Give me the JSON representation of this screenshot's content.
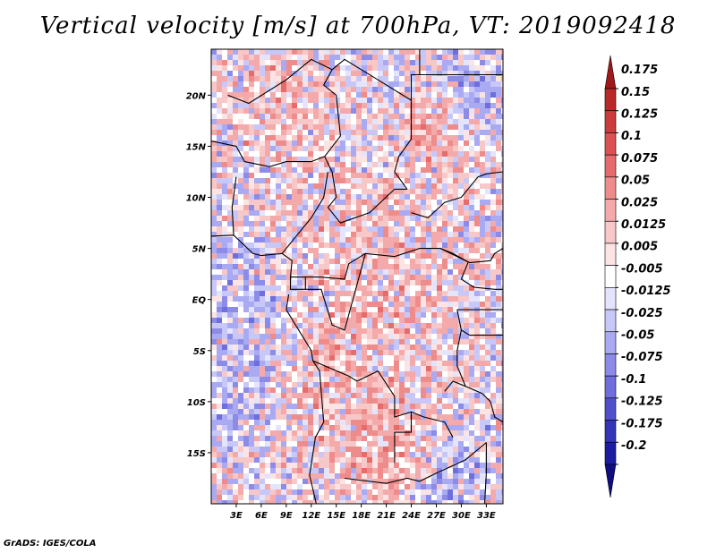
{
  "figure": {
    "title": "Vertical velocity [m/s] at 700hPa, VT: 2019092418",
    "footer": "GrADS: IGES/COLA"
  },
  "chart_data": {
    "type": "heatmap",
    "title": "Vertical velocity [m/s] at 700hPa, VT: 2019092418",
    "variable": "Vertical velocity",
    "units": "m/s",
    "level": "700hPa",
    "valid_time": "2019092418",
    "x_range": [
      0,
      35
    ],
    "y_range": [
      -20,
      24.5
    ],
    "x_ticks": [
      {
        "value": 3,
        "label": "3E"
      },
      {
        "value": 6,
        "label": "6E"
      },
      {
        "value": 9,
        "label": "9E"
      },
      {
        "value": 12,
        "label": "12E"
      },
      {
        "value": 15,
        "label": "15E"
      },
      {
        "value": 18,
        "label": "18E"
      },
      {
        "value": 21,
        "label": "21E"
      },
      {
        "value": 24,
        "label": "24E"
      },
      {
        "value": 27,
        "label": "27E"
      },
      {
        "value": 30,
        "label": "30E"
      },
      {
        "value": 33,
        "label": "33E"
      }
    ],
    "y_ticks": [
      {
        "value": 20,
        "label": "20N"
      },
      {
        "value": 15,
        "label": "15N"
      },
      {
        "value": 10,
        "label": "10N"
      },
      {
        "value": 5,
        "label": "5N"
      },
      {
        "value": 0,
        "label": "EQ"
      },
      {
        "value": -5,
        "label": "5S"
      },
      {
        "value": -10,
        "label": "10S"
      },
      {
        "value": -15,
        "label": "15S"
      }
    ],
    "colorbar": {
      "labels": [
        "0.175",
        "0.15",
        "0.125",
        "0.1",
        "0.075",
        "0.05",
        "0.025",
        "0.0125",
        "0.005",
        "-0.005",
        "-0.0125",
        "-0.025",
        "-0.05",
        "-0.075",
        "-0.1",
        "-0.125",
        "-0.175",
        "-0.2"
      ],
      "colors": [
        "#a01818",
        "#bb2828",
        "#cc3c3c",
        "#dc5252",
        "#e66c6c",
        "#ee8c8c",
        "#f4aaaa",
        "#f8c8c8",
        "#fce4e4",
        "#ffffff",
        "#e4e4fc",
        "#c8c8f8",
        "#aaaaf2",
        "#8c8ce8",
        "#6e6edc",
        "#5050cc",
        "#3434b8",
        "#1c1ca2",
        "#0e0e80"
      ]
    }
  }
}
